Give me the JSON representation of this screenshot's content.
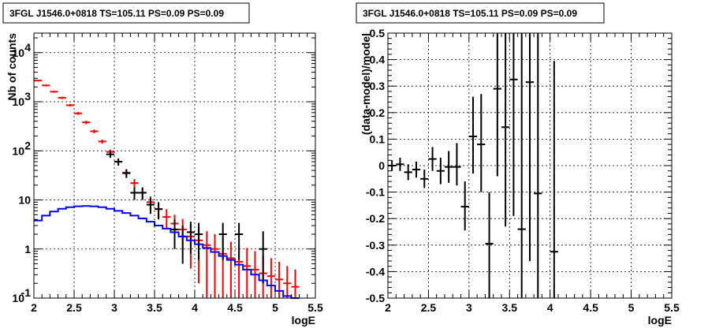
{
  "chart_data": [
    {
      "type": "scatter",
      "title": "3FGL J1546.0+0818 TS=105.11 PS=0.09 PS=0.09",
      "xlabel": "logE",
      "ylabel": "Nb of counts",
      "xlim": [
        2,
        5.5
      ],
      "ylim": [
        0.1,
        25000
      ],
      "yscale": "log",
      "grid": true,
      "x_ticks": [
        "2",
        "2.5",
        "3",
        "3.5",
        "4",
        "4.5",
        "5",
        "5.5"
      ],
      "y_ticks": [
        {
          "value": 0.1,
          "base": "10",
          "exp": "-1"
        },
        {
          "value": 1,
          "base": "1",
          "exp": ""
        },
        {
          "value": 10,
          "base": "10",
          "exp": ""
        },
        {
          "value": 100,
          "base": "10",
          "exp": "2"
        },
        {
          "value": 1000,
          "base": "10",
          "exp": "3"
        },
        {
          "value": 10000,
          "base": "10",
          "exp": "4"
        }
      ],
      "series": [
        {
          "color": "#ff0000",
          "style": "errorbar",
          "points": [
            {
              "x": 2.05,
              "y": 2700,
              "lo": 2600,
              "hi": 2800
            },
            {
              "x": 2.15,
              "y": 2150,
              "lo": 2060,
              "hi": 2240
            },
            {
              "x": 2.25,
              "y": 1600,
              "lo": 1530,
              "hi": 1680
            },
            {
              "x": 2.35,
              "y": 1200,
              "lo": 1140,
              "hi": 1260
            },
            {
              "x": 2.45,
              "y": 850,
              "lo": 800,
              "hi": 900
            },
            {
              "x": 2.55,
              "y": 580,
              "lo": 540,
              "hi": 620
            },
            {
              "x": 2.65,
              "y": 380,
              "lo": 350,
              "hi": 410
            },
            {
              "x": 2.75,
              "y": 250,
              "lo": 228,
              "hi": 272
            },
            {
              "x": 2.85,
              "y": 155,
              "lo": 140,
              "hi": 170
            },
            {
              "x": 2.95,
              "y": 95,
              "lo": 84,
              "hi": 106
            },
            {
              "x": 3.05,
              "y": 60,
              "lo": 52,
              "hi": 68
            },
            {
              "x": 3.15,
              "y": 36,
              "lo": 30,
              "hi": 42
            },
            {
              "x": 3.25,
              "y": 22,
              "lo": 17.5,
              "hi": 26.5
            },
            {
              "x": 3.35,
              "y": 14,
              "lo": 10.5,
              "hi": 17.5
            },
            {
              "x": 3.45,
              "y": 9,
              "lo": 6.2,
              "hi": 11.8
            },
            {
              "x": 3.55,
              "y": 6.5,
              "lo": 4.2,
              "hi": 8.8
            },
            {
              "x": 3.65,
              "y": 4.5,
              "lo": 2.5,
              "hi": 6.5
            },
            {
              "x": 3.75,
              "y": 3.3,
              "lo": 1.6,
              "hi": 5.0
            },
            {
              "x": 3.85,
              "y": 2.5,
              "lo": 0.9,
              "hi": 4.1
            },
            {
              "x": 3.95,
              "y": 1.8,
              "lo": 0.4,
              "hi": 3.2
            },
            {
              "x": 4.05,
              "y": 1.5,
              "lo": 0.2,
              "hi": 2.8
            },
            {
              "x": 4.15,
              "y": 1.2,
              "lo": 0.1,
              "hi": 2.3
            },
            {
              "x": 4.25,
              "y": 1.0,
              "lo": 0.1,
              "hi": 2.0
            },
            {
              "x": 4.35,
              "y": 0.8,
              "lo": 0.1,
              "hi": 1.7
            },
            {
              "x": 4.45,
              "y": 0.65,
              "lo": 0.1,
              "hi": 1.4
            },
            {
              "x": 4.55,
              "y": 0.55,
              "lo": 0.1,
              "hi": 1.25
            },
            {
              "x": 4.65,
              "y": 0.45,
              "lo": 0.1,
              "hi": 1.05
            },
            {
              "x": 4.75,
              "y": 0.38,
              "lo": 0.1,
              "hi": 0.9
            },
            {
              "x": 4.85,
              "y": 0.32,
              "lo": 0.1,
              "hi": 0.75
            },
            {
              "x": 4.95,
              "y": 0.28,
              "lo": 0.1,
              "hi": 0.65
            },
            {
              "x": 5.05,
              "y": 0.24,
              "lo": 0.1,
              "hi": 0.55
            },
            {
              "x": 5.15,
              "y": 0.2,
              "lo": 0.1,
              "hi": 0.45
            },
            {
              "x": 5.25,
              "y": 0.17,
              "lo": 0.1,
              "hi": 0.38
            }
          ]
        },
        {
          "color": "#000000",
          "style": "errorbar",
          "points": [
            {
              "x": 2.95,
              "y": 85,
              "lo": 72,
              "hi": 98
            },
            {
              "x": 3.05,
              "y": 60,
              "lo": 50,
              "hi": 70
            },
            {
              "x": 3.15,
              "y": 35,
              "lo": 28,
              "hi": 42
            },
            {
              "x": 3.25,
              "y": 14,
              "lo": 10,
              "hi": 18
            },
            {
              "x": 3.35,
              "y": 14,
              "lo": 10,
              "hi": 18
            },
            {
              "x": 3.45,
              "y": 8,
              "lo": 5.2,
              "hi": 11
            },
            {
              "x": 3.55,
              "y": 6.5,
              "lo": 4.0,
              "hi": 9.0
            },
            {
              "x": 3.75,
              "y": 2.5,
              "lo": 1.0,
              "hi": 4.0
            },
            {
              "x": 3.85,
              "y": 1.8,
              "lo": 0.5,
              "hi": 3.0
            },
            {
              "x": 3.95,
              "y": 2.2,
              "lo": 0.8,
              "hi": 3.6
            },
            {
              "x": 4.05,
              "y": 2.0,
              "lo": 0.6,
              "hi": 3.4
            },
            {
              "x": 4.35,
              "y": 2.0,
              "lo": 0.6,
              "hi": 3.4
            },
            {
              "x": 4.55,
              "y": 2.0,
              "lo": 0.6,
              "hi": 3.4
            },
            {
              "x": 4.85,
              "y": 1.0,
              "lo": 0.2,
              "hi": 2.3
            }
          ]
        },
        {
          "color": "#0000ff",
          "style": "step",
          "edges": [
            2.0,
            2.1,
            2.2,
            2.3,
            2.4,
            2.5,
            2.6,
            2.7,
            2.8,
            2.9,
            3.0,
            3.1,
            3.2,
            3.3,
            3.4,
            3.5,
            3.6,
            3.7,
            3.8,
            3.9,
            4.0,
            4.1,
            4.2,
            4.3,
            4.4,
            4.5,
            4.6,
            4.7,
            4.8,
            4.9,
            5.0,
            5.1,
            5.2,
            5.3
          ],
          "values": [
            3.8,
            4.8,
            5.8,
            6.6,
            7.1,
            7.4,
            7.5,
            7.4,
            7.1,
            6.6,
            6.0,
            5.4,
            4.8,
            4.2,
            3.6,
            3.0,
            2.6,
            2.2,
            1.8,
            1.5,
            1.25,
            1.05,
            0.87,
            0.72,
            0.6,
            0.48,
            0.38,
            0.3,
            0.23,
            0.18,
            0.14,
            0.11,
            0.1
          ]
        }
      ]
    },
    {
      "type": "scatter",
      "title": "3FGL J1546.0+0818 TS=105.11 PS=0.09 PS=0.09",
      "xlabel": "logE",
      "ylabel": "(data-model)/model",
      "xlim": [
        2,
        5.5
      ],
      "ylim": [
        -0.5,
        0.5
      ],
      "grid": true,
      "x_ticks": [
        "2",
        "2.5",
        "3",
        "3.5",
        "4",
        "4.5",
        "5",
        "5.5"
      ],
      "y_ticks": [
        "-0.5",
        "-0.4",
        "-0.3",
        "-0.2",
        "-0.1",
        "0",
        "0.1",
        "0.2",
        "0.3",
        "0.4",
        "0.5"
      ],
      "series": [
        {
          "color": "#000000",
          "style": "errorbar",
          "points": [
            {
              "x": 2.05,
              "y": 0.0,
              "lo": -0.02,
              "hi": 0.02
            },
            {
              "x": 2.15,
              "y": 0.005,
              "lo": -0.02,
              "hi": 0.03
            },
            {
              "x": 2.25,
              "y": -0.025,
              "lo": -0.055,
              "hi": 0.005
            },
            {
              "x": 2.35,
              "y": -0.015,
              "lo": -0.045,
              "hi": 0.015
            },
            {
              "x": 2.45,
              "y": -0.05,
              "lo": -0.085,
              "hi": -0.015
            },
            {
              "x": 2.55,
              "y": 0.025,
              "lo": -0.02,
              "hi": 0.07
            },
            {
              "x": 2.65,
              "y": -0.02,
              "lo": -0.07,
              "hi": 0.03
            },
            {
              "x": 2.75,
              "y": -0.005,
              "lo": -0.065,
              "hi": 0.055
            },
            {
              "x": 2.85,
              "y": -0.005,
              "lo": -0.075,
              "hi": 0.085
            },
            {
              "x": 2.95,
              "y": -0.155,
              "lo": -0.245,
              "hi": -0.06
            },
            {
              "x": 3.05,
              "y": 0.11,
              "lo": -0.03,
              "hi": 0.26
            },
            {
              "x": 3.15,
              "y": 0.08,
              "lo": -0.1,
              "hi": 0.27
            },
            {
              "x": 3.25,
              "y": -0.295,
              "lo": -0.5,
              "hi": -0.1
            },
            {
              "x": 3.35,
              "y": 0.29,
              "lo": -0.04,
              "hi": 0.5
            },
            {
              "x": 3.45,
              "y": 0.145,
              "lo": -0.23,
              "hi": 0.5
            },
            {
              "x": 3.55,
              "y": 0.325,
              "lo": -0.19,
              "hi": 0.5
            },
            {
              "x": 3.65,
              "y": -0.24,
              "lo": -0.5,
              "hi": 0.5
            },
            {
              "x": 3.75,
              "y": 0.315,
              "lo": -0.36,
              "hi": 0.5
            },
            {
              "x": 3.85,
              "y": -0.105,
              "lo": -0.5,
              "hi": 0.5
            },
            {
              "x": 4.05,
              "y": -0.325,
              "lo": -0.5,
              "hi": 0.395
            }
          ]
        }
      ]
    }
  ]
}
